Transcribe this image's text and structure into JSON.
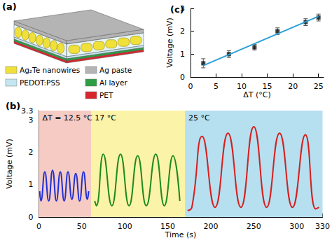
{
  "diagram": {
    "label": "(a)",
    "legend": [
      {
        "name": "Ag₂Te nanowires",
        "color": "#f0e03a"
      },
      {
        "name": "Ag paste",
        "color": "#b4b4b4"
      },
      {
        "name": "PEDOT:PSS",
        "color": "#c4e6f0"
      },
      {
        "name": "Al layer",
        "color": "#2e9e44"
      },
      {
        "name": "PET",
        "color": "#d8262c"
      }
    ]
  },
  "chart_data": [
    {
      "type": "line",
      "title": "(b)",
      "x_label": "Time (s)",
      "y_label": "Voltage (mV)",
      "xlim": [
        0,
        330
      ],
      "xticks": [
        0,
        50,
        100,
        150,
        200,
        250,
        300
      ],
      "ylim": [
        0,
        3.3
      ],
      "yticks": [
        0,
        1,
        2,
        3
      ],
      "grid": false,
      "regions": [
        {
          "label": "ΔT = 12.5 °C",
          "x": [
            0,
            61
          ],
          "color": "#f5cbc4"
        },
        {
          "label": "17 °C",
          "x": [
            61,
            170
          ],
          "color": "#fbf3a8"
        },
        {
          "label": "25 °C",
          "x": [
            170,
            330
          ],
          "color": "#b6e0f0"
        }
      ],
      "series": [
        {
          "color": "#1f2fd6",
          "x": [
            1,
            2.5,
            7,
            11.5,
            16,
            20.5,
            25,
            29.5,
            34,
            38.5,
            43,
            47.5,
            52,
            56.5,
            58
          ],
          "values": [
            0.8,
            0.5,
            1.4,
            0.5,
            1.45,
            0.5,
            1.4,
            0.5,
            1.4,
            0.55,
            1.35,
            0.5,
            1.4,
            0.55,
            0.8
          ]
        },
        {
          "color": "#1e8a1e",
          "x": [
            65,
            67,
            75,
            85,
            95,
            105,
            115,
            125,
            136,
            146,
            156,
            164
          ],
          "values": [
            0.5,
            0.35,
            1.95,
            0.35,
            1.95,
            0.35,
            1.9,
            0.35,
            1.95,
            0.35,
            1.9,
            0.5
          ]
        },
        {
          "color": "#d61f1f",
          "x": [
            173,
            178,
            190,
            205,
            220,
            235,
            250,
            265,
            280,
            295,
            310,
            322,
            326
          ],
          "values": [
            0.2,
            0.3,
            2.5,
            0.3,
            2.6,
            0.3,
            2.8,
            0.3,
            2.6,
            0.3,
            2.55,
            0.25,
            0.3
          ]
        }
      ]
    },
    {
      "type": "scatter",
      "title": "(c)",
      "x_label": "ΔT (°C)",
      "y_label": "Voltage (mV)",
      "xlim": [
        0,
        26
      ],
      "xticks": [
        0,
        5,
        10,
        15,
        20,
        25
      ],
      "ylim": [
        0,
        3
      ],
      "yticks": [
        0,
        1,
        2,
        3
      ],
      "grid": false,
      "marker": "square",
      "color": "#111111",
      "x": [
        2.5,
        7.5,
        12.5,
        17,
        22.5,
        25
      ],
      "values": [
        0.6,
        1.0,
        1.3,
        2.0,
        2.4,
        2.6
      ],
      "errors": [
        0.2,
        0.15,
        0.12,
        0.15,
        0.15,
        0.15
      ],
      "fit": {
        "color": "#2a9fd6",
        "x": [
          2.5,
          25
        ],
        "values": [
          0.5,
          2.65
        ]
      }
    }
  ]
}
